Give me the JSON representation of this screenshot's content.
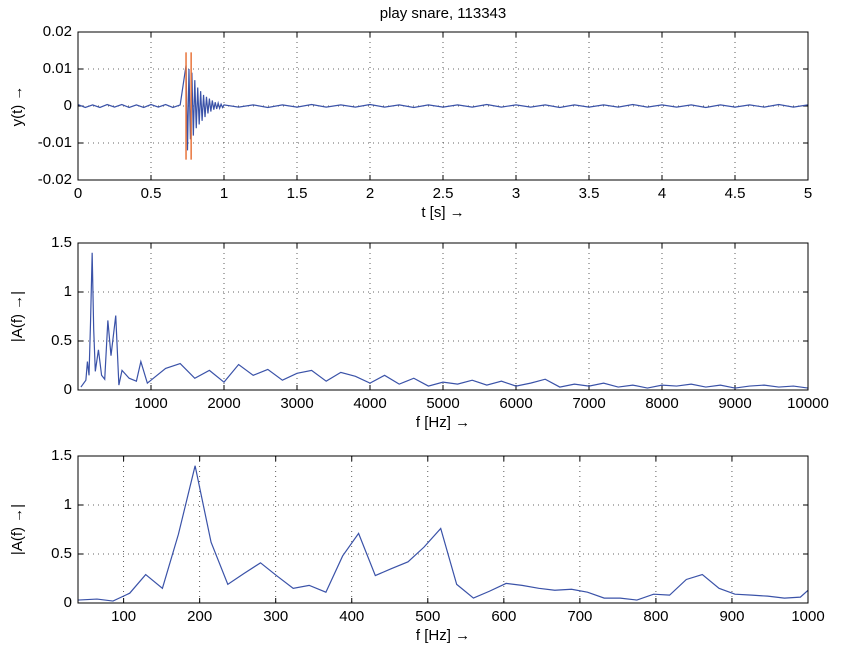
{
  "chart_data": [
    {
      "type": "line",
      "title": "play snare, 113343",
      "xlabel": "t [s] →",
      "ylabel": "y(t)  →",
      "xlim": [
        0,
        5
      ],
      "xticks": [
        0,
        0.5,
        1,
        1.5,
        2,
        2.5,
        3,
        3.5,
        4,
        4.5,
        5
      ],
      "ylim": [
        -0.02,
        0.02
      ],
      "yticks": [
        -0.02,
        -0.01,
        0,
        0.01,
        0.02
      ],
      "grid": true,
      "x": [
        0,
        0.05,
        0.1,
        0.15,
        0.2,
        0.25,
        0.3,
        0.35,
        0.4,
        0.45,
        0.5,
        0.55,
        0.6,
        0.65,
        0.7,
        0.74,
        0.75,
        0.76,
        0.77,
        0.78,
        0.79,
        0.8,
        0.81,
        0.82,
        0.83,
        0.84,
        0.85,
        0.86,
        0.87,
        0.88,
        0.89,
        0.9,
        0.91,
        0.92,
        0.93,
        0.94,
        0.95,
        0.96,
        0.97,
        0.98,
        0.99,
        1.0,
        1.1,
        1.2,
        1.3,
        1.4,
        1.5,
        1.6,
        1.7,
        1.8,
        1.9,
        2.0,
        2.1,
        2.2,
        2.3,
        2.4,
        2.5,
        2.6,
        2.7,
        2.8,
        2.9,
        3.0,
        3.1,
        3.2,
        3.3,
        3.4,
        3.5,
        3.6,
        3.7,
        3.8,
        3.9,
        4.0,
        4.1,
        4.2,
        4.3,
        4.4,
        4.5,
        4.6,
        4.7,
        4.8,
        4.9,
        5.0
      ],
      "series": [
        {
          "color": "#3a52a8",
          "values": [
            0.0004,
            -0.0004,
            0.0003,
            -0.0004,
            0.0004,
            -0.0003,
            0.0004,
            -0.0004,
            0.0003,
            -0.0004,
            0.0004,
            -0.0003,
            0.0004,
            -0.0004,
            0.0003,
            0.011,
            -0.012,
            0.01,
            -0.009,
            0.009,
            -0.008,
            0.007,
            -0.006,
            0.005,
            -0.005,
            0.004,
            -0.004,
            0.003,
            -0.003,
            0.0025,
            -0.002,
            0.002,
            -0.0015,
            0.0015,
            -0.001,
            0.001,
            -0.0008,
            0.0008,
            -0.0006,
            0.0005,
            -0.0004,
            0.0003,
            -0.0003,
            0.0003,
            -0.0004,
            0.0003,
            -0.0003,
            0.0004,
            -0.0003,
            0.0003,
            -0.0003,
            0.0004,
            -0.0003,
            0.0003,
            -0.0004,
            0.0003,
            -0.0003,
            0.0003,
            -0.0003,
            0.0004,
            -0.0003,
            0.0003,
            -0.0003,
            0.0003,
            -0.0004,
            0.0003,
            -0.0003,
            0.0003,
            -0.0003,
            0.0004,
            -0.0003,
            0.0003,
            -0.0003,
            0.0003,
            -0.0004,
            0.0003,
            -0.0003,
            0.0003,
            -0.0003,
            0.0004,
            -0.0003,
            0.0003
          ]
        }
      ],
      "markers": {
        "color": "#e8743b",
        "x": [
          0.74,
          0.775
        ],
        "y": [
          -0.0145,
          0.0145
        ]
      }
    },
    {
      "type": "line",
      "xlabel": "f [Hz] →",
      "ylabel": "|A(f)  →|",
      "xlim": [
        0,
        10000
      ],
      "xticks": [
        1000,
        2000,
        3000,
        4000,
        5000,
        6000,
        7000,
        8000,
        9000,
        10000
      ],
      "ylim": [
        0,
        1.5
      ],
      "yticks": [
        0,
        0.5,
        1,
        1.5
      ],
      "grid": true,
      "x": [
        40,
        108,
        129,
        151,
        172,
        194,
        215,
        237,
        280,
        323,
        366,
        409,
        452,
        517,
        560,
        603,
        700,
        800,
        861,
        950,
        1000,
        1200,
        1400,
        1600,
        1800,
        2000,
        2200,
        2400,
        2600,
        2800,
        3000,
        3200,
        3400,
        3600,
        3800,
        4000,
        4200,
        4400,
        4600,
        4800,
        5000,
        5200,
        5400,
        5600,
        5800,
        6000,
        6200,
        6400,
        6600,
        6800,
        7000,
        7200,
        7400,
        7600,
        7800,
        8000,
        8200,
        8400,
        8600,
        8800,
        9000,
        9200,
        9400,
        9600,
        9800,
        10000
      ],
      "series": [
        {
          "color": "#3a52a8",
          "values": [
            0.03,
            0.1,
            0.29,
            0.15,
            0.7,
            1.4,
            0.62,
            0.19,
            0.41,
            0.15,
            0.11,
            0.71,
            0.35,
            0.76,
            0.05,
            0.2,
            0.12,
            0.09,
            0.29,
            0.07,
            0.1,
            0.22,
            0.27,
            0.12,
            0.2,
            0.08,
            0.26,
            0.15,
            0.21,
            0.1,
            0.17,
            0.2,
            0.09,
            0.18,
            0.14,
            0.07,
            0.15,
            0.06,
            0.12,
            0.04,
            0.08,
            0.06,
            0.1,
            0.05,
            0.09,
            0.04,
            0.07,
            0.11,
            0.03,
            0.06,
            0.04,
            0.07,
            0.03,
            0.05,
            0.02,
            0.05,
            0.04,
            0.06,
            0.03,
            0.05,
            0.02,
            0.04,
            0.05,
            0.03,
            0.04,
            0.02
          ]
        }
      ]
    },
    {
      "type": "line",
      "xlabel": "f [Hz] →",
      "ylabel": "|A(f) →|",
      "xlim": [
        40,
        1000
      ],
      "xticks": [
        100,
        200,
        300,
        400,
        500,
        600,
        700,
        800,
        900,
        1000
      ],
      "ylim": [
        0,
        1.5
      ],
      "yticks": [
        0,
        0.5,
        1,
        1.5
      ],
      "grid": true,
      "x": [
        40,
        65,
        86,
        108,
        129,
        151,
        172,
        194,
        215,
        237,
        258,
        280,
        301,
        323,
        344,
        366,
        388,
        409,
        431,
        452,
        474,
        495,
        517,
        538,
        560,
        581,
        603,
        624,
        646,
        667,
        689,
        710,
        732,
        753,
        775,
        797,
        818,
        840,
        861,
        883,
        904,
        926,
        947,
        969,
        990,
        1000
      ],
      "series": [
        {
          "color": "#3a52a8",
          "values": [
            0.03,
            0.04,
            0.02,
            0.1,
            0.29,
            0.15,
            0.7,
            1.4,
            0.62,
            0.19,
            0.3,
            0.41,
            0.28,
            0.15,
            0.18,
            0.11,
            0.48,
            0.71,
            0.28,
            0.35,
            0.42,
            0.57,
            0.76,
            0.19,
            0.05,
            0.12,
            0.2,
            0.18,
            0.15,
            0.13,
            0.14,
            0.11,
            0.05,
            0.05,
            0.03,
            0.09,
            0.08,
            0.24,
            0.29,
            0.15,
            0.09,
            0.08,
            0.07,
            0.05,
            0.06,
            0.13
          ]
        }
      ]
    }
  ]
}
